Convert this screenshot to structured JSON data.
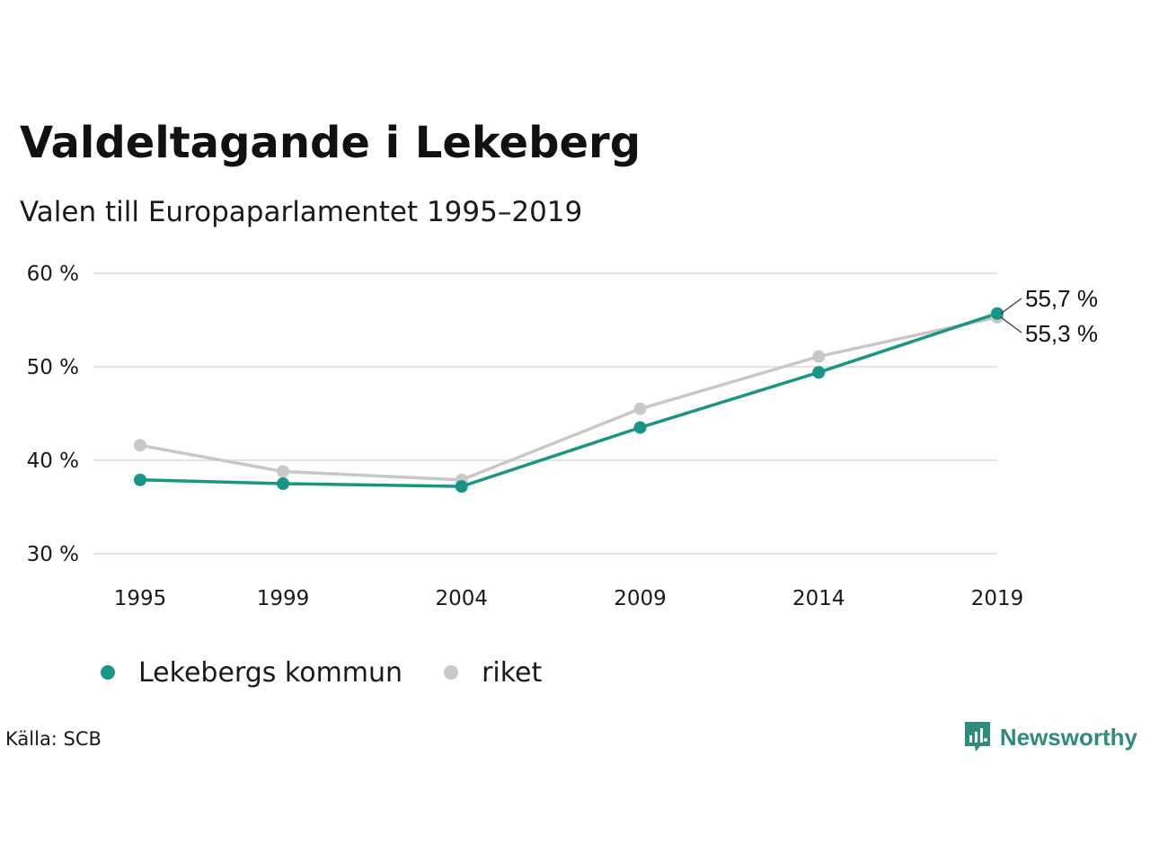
{
  "title": "Valdeltagande i Lekeberg",
  "subtitle": "Valen till Europaparlamentet 1995–2019",
  "source": "Källa: SCB",
  "brand": {
    "name": "Newsworthy",
    "color": "#2f8c7c",
    "icon": "newsworthy-logo-icon"
  },
  "legend": [
    {
      "label": "Lekebergs kommun",
      "color": "#1a9484"
    },
    {
      "label": "riket",
      "color": "#c8c8c8"
    }
  ],
  "end_labels": [
    "55,7 %",
    "55,3 %"
  ],
  "chart_data": {
    "type": "line",
    "title": "Valdeltagande i Lekeberg",
    "subtitle": "Valen till Europaparlamentet 1995–2019",
    "x": [
      1995,
      1999,
      2004,
      2009,
      2014,
      2019
    ],
    "x_tick_labels": [
      "1995",
      "1999",
      "2004",
      "2009",
      "2014",
      "2019"
    ],
    "y_ticks": [
      30,
      40,
      50,
      60
    ],
    "y_tick_labels": [
      "30 %",
      "40 %",
      "50 %",
      "60 %"
    ],
    "ylim": [
      30,
      60
    ],
    "grid": "horizontal",
    "legend_position": "bottom-left",
    "series": [
      {
        "name": "riket",
        "color": "#c8c8c8",
        "values": [
          41.6,
          38.8,
          37.9,
          45.5,
          51.1,
          55.3
        ]
      },
      {
        "name": "Lekebergs kommun",
        "color": "#1a9484",
        "values": [
          37.9,
          37.5,
          37.2,
          43.5,
          49.4,
          55.7
        ]
      }
    ]
  }
}
